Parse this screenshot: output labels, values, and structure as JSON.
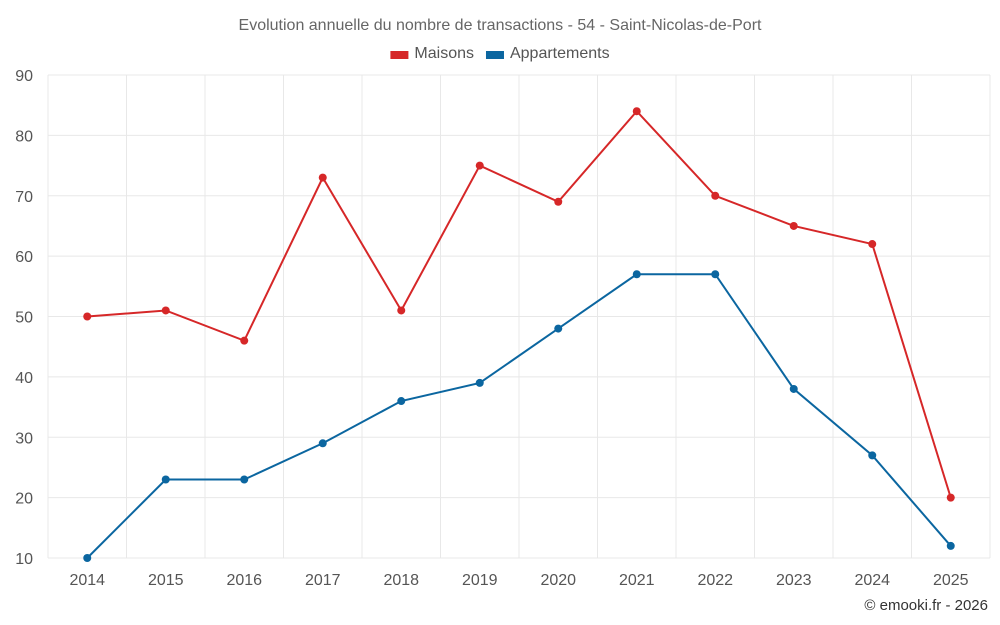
{
  "chart_data": {
    "type": "line",
    "title": "Evolution annuelle du nombre de transactions - 54 - Saint-Nicolas-de-Port",
    "categories": [
      "2014",
      "2015",
      "2016",
      "2017",
      "2018",
      "2019",
      "2020",
      "2021",
      "2022",
      "2023",
      "2024",
      "2025"
    ],
    "series": [
      {
        "name": "Maisons",
        "color": "#d62728",
        "values": [
          50,
          51,
          46,
          73,
          51,
          75,
          69,
          84,
          70,
          65,
          62,
          20
        ]
      },
      {
        "name": "Appartements",
        "color": "#0b66a0",
        "values": [
          10,
          23,
          23,
          29,
          36,
          39,
          48,
          57,
          57,
          38,
          27,
          12
        ]
      }
    ],
    "ylim": [
      10,
      90
    ],
    "yticks": [
      10,
      20,
      30,
      40,
      50,
      60,
      70,
      80,
      90
    ],
    "grid": true,
    "legend": "top-center",
    "xlabel": "",
    "ylabel": ""
  },
  "credit": "© emooki.fr - 2026"
}
